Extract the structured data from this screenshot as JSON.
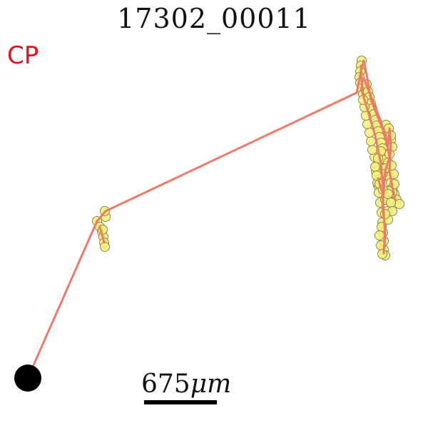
{
  "title": "17302_00011",
  "corner_label": "CP",
  "scale_bar": {
    "label_number": "675",
    "label_unit": "μm"
  },
  "colors": {
    "track": "#f07a6a",
    "points_fill": "#f6f07a",
    "points_stroke": "#8a8a4a",
    "start_point": "#000000",
    "corner_label": "#e8101a"
  }
}
